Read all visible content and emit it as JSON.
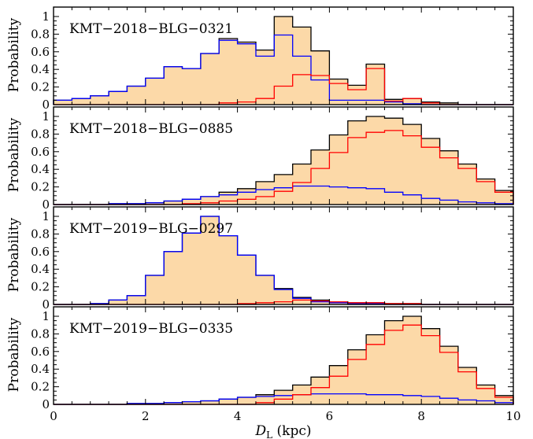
{
  "figure": {
    "xlabel_main": "D",
    "xlabel_sub": "L",
    "xlabel_unit": " (kpc)",
    "ylabel": "Probability"
  },
  "colors": {
    "fill": "#fcd9a8",
    "total": "#000000",
    "disk": "#0000ff",
    "bulge": "#ff0000"
  },
  "chart_data": [
    {
      "type": "histogram",
      "title": "KMT−2018−BLG−0321",
      "xlim": [
        0,
        10
      ],
      "ylim": [
        0,
        1.0
      ],
      "bin_width": 0.4,
      "x_start": 0,
      "xticks": [
        "0",
        "2",
        "4",
        "6",
        "8",
        "10"
      ],
      "yticks": [
        "0",
        "0.2",
        "0.4",
        "0.6",
        "0.8",
        "1"
      ],
      "series": [
        {
          "color": "total",
          "values": [
            0.05,
            0.07,
            0.1,
            0.15,
            0.21,
            0.3,
            0.43,
            0.41,
            0.58,
            0.75,
            0.71,
            0.62,
            1.0,
            0.88,
            0.61,
            0.29,
            0.22,
            0.46,
            0.06,
            0.07,
            0.03,
            0.02,
            0.0,
            0.0,
            0.0
          ]
        },
        {
          "color": "disk",
          "values": [
            0.05,
            0.07,
            0.1,
            0.15,
            0.21,
            0.3,
            0.43,
            0.41,
            0.58,
            0.73,
            0.69,
            0.55,
            0.79,
            0.55,
            0.28,
            0.05,
            0.05,
            0.05,
            0.03,
            0.01,
            0.0,
            0.0,
            0.0,
            0.0,
            0.0
          ]
        },
        {
          "color": "bulge",
          "values": [
            0.0,
            0.0,
            0.0,
            0.0,
            0.0,
            0.0,
            0.0,
            0.0,
            0.0,
            0.02,
            0.03,
            0.07,
            0.21,
            0.34,
            0.33,
            0.24,
            0.17,
            0.41,
            0.04,
            0.07,
            0.02,
            0.0,
            0.0,
            0.0,
            0.0
          ]
        }
      ]
    },
    {
      "type": "histogram",
      "title": "KMT−2018−BLG−0885",
      "xlim": [
        0,
        10
      ],
      "ylim": [
        0,
        1.0
      ],
      "bin_width": 0.4,
      "x_start": 0,
      "xticks": [
        "0",
        "2",
        "4",
        "6",
        "8",
        "10"
      ],
      "yticks": [
        "0",
        "0.2",
        "0.4",
        "0.6",
        "0.8",
        "1"
      ],
      "series": [
        {
          "color": "total",
          "values": [
            0.0,
            0.0,
            0.0,
            0.01,
            0.01,
            0.02,
            0.04,
            0.06,
            0.09,
            0.14,
            0.18,
            0.26,
            0.34,
            0.46,
            0.62,
            0.79,
            0.95,
            1.0,
            0.98,
            0.91,
            0.75,
            0.61,
            0.46,
            0.29,
            0.16
          ]
        },
        {
          "color": "disk",
          "values": [
            0.0,
            0.0,
            0.0,
            0.01,
            0.01,
            0.02,
            0.04,
            0.06,
            0.09,
            0.11,
            0.14,
            0.17,
            0.19,
            0.21,
            0.21,
            0.2,
            0.19,
            0.18,
            0.14,
            0.11,
            0.07,
            0.05,
            0.03,
            0.02,
            0.01
          ]
        },
        {
          "color": "bulge",
          "values": [
            0.0,
            0.0,
            0.0,
            0.0,
            0.0,
            0.0,
            0.0,
            0.01,
            0.02,
            0.04,
            0.06,
            0.09,
            0.15,
            0.25,
            0.41,
            0.59,
            0.76,
            0.82,
            0.84,
            0.78,
            0.65,
            0.53,
            0.41,
            0.26,
            0.14
          ]
        }
      ]
    },
    {
      "type": "histogram",
      "title": "KMT−2019−BLG−0297",
      "xlim": [
        0,
        10
      ],
      "ylim": [
        0,
        1.0
      ],
      "bin_width": 0.4,
      "x_start": 0,
      "xticks": [
        "0",
        "2",
        "4",
        "6",
        "8",
        "10"
      ],
      "yticks": [
        "0",
        "0.2",
        "0.4",
        "0.6",
        "0.8",
        "1"
      ],
      "series": [
        {
          "color": "total",
          "values": [
            0.0,
            0.0,
            0.01,
            0.05,
            0.1,
            0.33,
            0.6,
            0.81,
            1.0,
            0.78,
            0.56,
            0.33,
            0.18,
            0.08,
            0.05,
            0.03,
            0.02,
            0.02,
            0.01,
            0.01,
            0.0,
            0.0,
            0.0,
            0.0,
            0.0
          ]
        },
        {
          "color": "disk",
          "values": [
            0.0,
            0.0,
            0.01,
            0.05,
            0.1,
            0.33,
            0.6,
            0.81,
            1.0,
            0.78,
            0.56,
            0.33,
            0.17,
            0.07,
            0.03,
            0.02,
            0.01,
            0.01,
            0.0,
            0.0,
            0.0,
            0.0,
            0.0,
            0.0,
            0.0
          ]
        },
        {
          "color": "bulge",
          "values": [
            0.0,
            0.0,
            0.0,
            0.0,
            0.0,
            0.0,
            0.0,
            0.0,
            0.0,
            0.0,
            0.01,
            0.02,
            0.03,
            0.05,
            0.04,
            0.03,
            0.02,
            0.02,
            0.01,
            0.01,
            0.0,
            0.0,
            0.0,
            0.0,
            0.0
          ]
        }
      ]
    },
    {
      "type": "histogram",
      "title": "KMT−2019−BLG−0335",
      "xlim": [
        0,
        10
      ],
      "ylim": [
        0,
        1.0
      ],
      "bin_width": 0.4,
      "x_start": 0,
      "xticks": [
        "0",
        "2",
        "4",
        "6",
        "8",
        "10"
      ],
      "yticks": [
        "0",
        "0.2",
        "0.4",
        "0.6",
        "0.8",
        "1"
      ],
      "series": [
        {
          "color": "total",
          "values": [
            0.0,
            0.0,
            0.0,
            0.0,
            0.01,
            0.01,
            0.02,
            0.03,
            0.04,
            0.06,
            0.08,
            0.11,
            0.16,
            0.22,
            0.31,
            0.44,
            0.62,
            0.79,
            0.95,
            1.0,
            0.86,
            0.66,
            0.42,
            0.22,
            0.1
          ]
        },
        {
          "color": "disk",
          "values": [
            0.0,
            0.0,
            0.0,
            0.0,
            0.01,
            0.01,
            0.02,
            0.03,
            0.04,
            0.06,
            0.08,
            0.09,
            0.1,
            0.11,
            0.12,
            0.12,
            0.12,
            0.11,
            0.11,
            0.1,
            0.09,
            0.07,
            0.05,
            0.04,
            0.02
          ]
        },
        {
          "color": "bulge",
          "values": [
            0.0,
            0.0,
            0.0,
            0.0,
            0.0,
            0.0,
            0.0,
            0.0,
            0.0,
            0.0,
            0.0,
            0.02,
            0.06,
            0.11,
            0.19,
            0.32,
            0.51,
            0.68,
            0.84,
            0.9,
            0.78,
            0.59,
            0.37,
            0.18,
            0.08
          ]
        }
      ]
    }
  ]
}
